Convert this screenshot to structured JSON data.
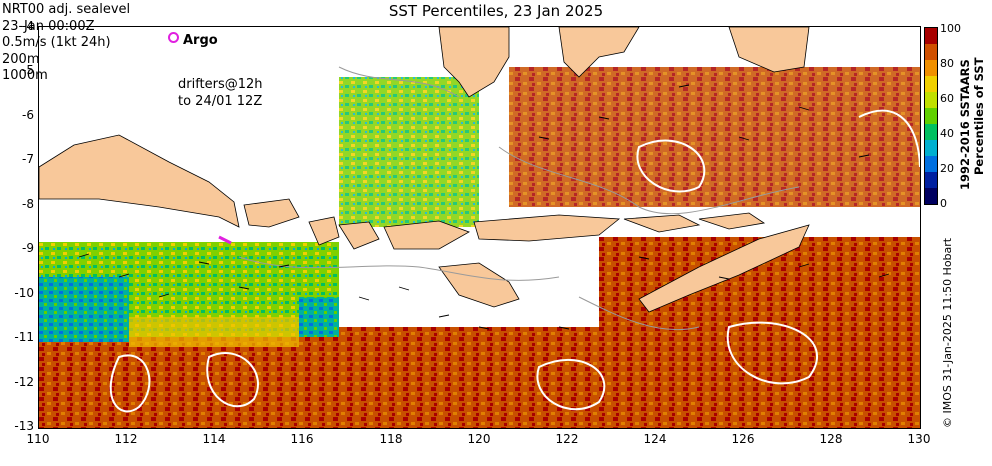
{
  "title": "SST Percentiles, 23 Jan 2025",
  "legend_lines": [
    "NRT00 adj. sealevel",
    "23-Jan 00:00Z",
    "0.5m/s (1kt 24h)",
    "200m",
    "1000m"
  ],
  "argo_label": "Argo",
  "drifters_lines": [
    "drifters@12h",
    "to 24/01 12Z"
  ],
  "y_ticks": [
    "-4",
    "-5",
    "-6",
    "-7",
    "-8",
    "-9",
    "-10",
    "-11",
    "-12",
    "-13"
  ],
  "x_ticks": [
    "110",
    "112",
    "114",
    "116",
    "118",
    "120",
    "122",
    "124",
    "126",
    "128",
    "130"
  ],
  "colorbar": {
    "ticks": [
      "100",
      "80",
      "60",
      "40",
      "20",
      "0"
    ],
    "label_line1": "1992-2016 SSTAARS",
    "label_line2": "Percentiles of SST",
    "colors": [
      "#a80000",
      "#d05000",
      "#f09000",
      "#f0d000",
      "#c0e000",
      "#60d000",
      "#00c060",
      "#00b0d0",
      "#0070e0",
      "#0020a0",
      "#000060"
    ]
  },
  "credit": "© IMOS 31-Jan-2025 11:50 Hobart",
  "land_color": "#f8c89a"
}
